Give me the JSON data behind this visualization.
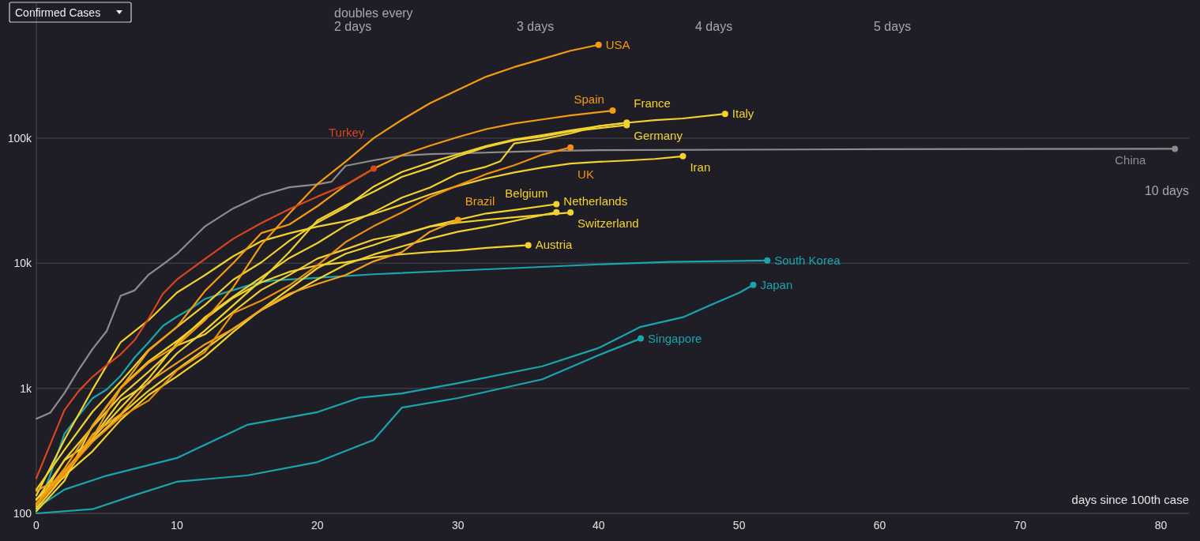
{
  "chart_data": {
    "type": "line",
    "title": "Confirmed Cases",
    "xlabel": "days since 100th case",
    "log": "y",
    "grid": "y",
    "marker": "none",
    "line_style": "solid",
    "xlim": [
      0,
      82
    ],
    "ylim": [
      100,
      1200000
    ],
    "xticks": [
      0,
      10,
      20,
      30,
      40,
      50,
      60,
      70,
      80
    ],
    "yticks": [
      {
        "value": 100,
        "label": "100"
      },
      {
        "value": 1000,
        "label": "1k"
      },
      {
        "value": 10000,
        "label": "10k"
      },
      {
        "value": 100000,
        "label": "100k"
      }
    ],
    "annotations": [
      "doubles every",
      "2 days",
      "3 days",
      "4 days",
      "5 days",
      "10 days"
    ],
    "series": [
      {
        "name": "China",
        "color": "#8c8c8c",
        "x": [
          0,
          1,
          2,
          3,
          4,
          5,
          6,
          7,
          8,
          9,
          10,
          12,
          14,
          16,
          18,
          20,
          21,
          22,
          24,
          26,
          28,
          30,
          35,
          40,
          50,
          60,
          70,
          81
        ],
        "values": [
          571,
          639,
          916,
          1399,
          2062,
          2863,
          5494,
          6070,
          8124,
          9783,
          11871,
          19700,
          27400,
          34900,
          40500,
          42700,
          44800,
          60000,
          66500,
          72400,
          74600,
          75500,
          78500,
          80100,
          80900,
          81500,
          82000,
          82200
        ]
      },
      {
        "name": "South Korea",
        "color": "#1aa5ad",
        "x": [
          0,
          1,
          2,
          3,
          4,
          5,
          6,
          7,
          8,
          9,
          10,
          11,
          12,
          13,
          14,
          15,
          16,
          17,
          19,
          24,
          29,
          34,
          40,
          45,
          52
        ],
        "values": [
          104,
          204,
          433,
          602,
          833,
          977,
          1261,
          1766,
          2337,
          3150,
          3736,
          4335,
          5186,
          5621,
          6088,
          6593,
          7041,
          7314,
          7513,
          8162,
          8652,
          9137,
          9786,
          10237,
          10512
        ]
      },
      {
        "name": "Japan",
        "color": "#1aa5ad",
        "x": [
          0,
          2,
          5,
          10,
          15,
          20,
          23,
          26,
          30,
          36,
          40,
          43,
          46,
          48,
          50,
          51
        ],
        "values": [
          110,
          155,
          200,
          277,
          510,
          645,
          840,
          910,
          1100,
          1500,
          2100,
          3100,
          3700,
          4650,
          5800,
          6700
        ]
      },
      {
        "name": "Singapore",
        "color": "#1aa5ad",
        "x": [
          0,
          4,
          7,
          10,
          15,
          20,
          24,
          26,
          30,
          36,
          40,
          43
        ],
        "values": [
          100,
          108,
          140,
          179,
          201,
          257,
          387,
          700,
          835,
          1180,
          1840,
          2500
        ]
      },
      {
        "name": "Austria",
        "color": "#f2d22e",
        "x": [
          0,
          2,
          4,
          6,
          8,
          10,
          12,
          14,
          16,
          18,
          20,
          22,
          24,
          26,
          28,
          30,
          32,
          35
        ],
        "values": [
          104,
          182,
          504,
          1016,
          1646,
          2388,
          3582,
          5282,
          7029,
          8536,
          9618,
          10180,
          11129,
          11781,
          12297,
          12639,
          13244,
          13945
        ]
      },
      {
        "name": "Netherlands",
        "color": "#f2d22e",
        "x": [
          0,
          2,
          4,
          6,
          8,
          10,
          12,
          14,
          16,
          18,
          20,
          22,
          24,
          26,
          28,
          30,
          32,
          34,
          37
        ],
        "values": [
          128,
          265,
          382,
          614,
          959,
          1413,
          2051,
          2994,
          4204,
          5560,
          7431,
          9762,
          11750,
          13614,
          15723,
          17851,
          19580,
          21762,
          25587
        ]
      },
      {
        "name": "Switzerland",
        "color": "#f2d22e",
        "x": [
          0,
          2,
          4,
          6,
          8,
          10,
          12,
          14,
          16,
          18,
          20,
          22,
          24,
          26,
          28,
          30,
          32,
          34,
          36,
          38
        ],
        "values": [
          114,
          268,
          491,
          868,
          1359,
          2200,
          2700,
          4075,
          6113,
          8060,
          10897,
          12928,
          15475,
          17070,
          19606,
          21100,
          22253,
          23280,
          24308,
          25415
        ]
      },
      {
        "name": "Belgium",
        "color": "#f2d22e",
        "x": [
          0,
          2,
          4,
          6,
          8,
          10,
          12,
          14,
          16,
          18,
          20,
          22,
          24,
          26,
          28,
          30,
          32,
          34,
          37
        ],
        "values": [
          109,
          200,
          314,
          559,
          886,
          1243,
          1795,
          2815,
          4269,
          6235,
          9134,
          11899,
          13964,
          16770,
          19691,
          22194,
          24983,
          26667,
          29647
        ]
      },
      {
        "name": "Iran",
        "color": "#f2d22e",
        "x": [
          0,
          2,
          4,
          6,
          8,
          10,
          12,
          14,
          16,
          18,
          20,
          22,
          24,
          26,
          28,
          30,
          32,
          34,
          36,
          38,
          40,
          42,
          44,
          46
        ],
        "values": [
          139,
          388,
          978,
          2336,
          3513,
          5823,
          8042,
          11364,
          14991,
          17361,
          19644,
          21638,
          24811,
          29406,
          35408,
          41495,
          47593,
          53183,
          58226,
          62589,
          64586,
          66220,
          68192,
          71686
        ]
      },
      {
        "name": "Germany",
        "color": "#f2d22e",
        "x": [
          0,
          2,
          4,
          6,
          8,
          10,
          12,
          14,
          16,
          18,
          20,
          22,
          24,
          26,
          28,
          30,
          32,
          34,
          36,
          38,
          40,
          42
        ],
        "values": [
          130,
          196,
          400,
          800,
          1100,
          1900,
          2900,
          4600,
          7300,
          12300,
          22000,
          29000,
          37300,
          49000,
          58000,
          71800,
          84800,
          96000,
          103000,
          113000,
          120000,
          127000
        ]
      },
      {
        "name": "France",
        "color": "#f2d22e",
        "x": [
          0,
          2,
          4,
          6,
          8,
          10,
          12,
          14,
          16,
          18,
          20,
          22,
          24,
          26,
          28,
          30,
          32,
          33,
          34,
          36,
          38,
          40,
          42
        ],
        "values": [
          130,
          212,
          400,
          700,
          1200,
          2300,
          3700,
          5400,
          7700,
          11000,
          14500,
          20000,
          25600,
          33400,
          40200,
          52100,
          59100,
          65200,
          90800,
          98000,
          109000,
          125000,
          133000
        ]
      },
      {
        "name": "Italy",
        "color": "#f2d22e",
        "x": [
          0,
          2,
          4,
          6,
          8,
          10,
          12,
          14,
          16,
          18,
          20,
          22,
          24,
          26,
          28,
          30,
          32,
          34,
          36,
          38,
          40,
          42,
          44,
          46,
          49
        ],
        "values": [
          155,
          322,
          650,
          1128,
          2036,
          3089,
          4636,
          7375,
          10149,
          15113,
          21157,
          27980,
          41035,
          53578,
          63927,
          74386,
          86498,
          97689,
          105792,
          115242,
          124632,
          132547,
          139422,
          143626,
          156363
        ]
      },
      {
        "name": "Brazil",
        "color": "#f4a21a",
        "x": [
          0,
          2,
          4,
          6,
          8,
          10,
          12,
          14,
          16,
          18,
          20,
          22,
          24,
          26,
          28,
          30
        ],
        "values": [
          151,
          200,
          428,
          621,
          1128,
          1593,
          2247,
          2985,
          4256,
          5717,
          6836,
          8044,
          10360,
          12240,
          17857,
          22169
        ]
      },
      {
        "name": "UK",
        "color": "#f0900e",
        "x": [
          0,
          2,
          4,
          6,
          8,
          10,
          12,
          14,
          16,
          18,
          20,
          22,
          24,
          26,
          28,
          30,
          32,
          34,
          36,
          38
        ],
        "values": [
          116,
          209,
          373,
          590,
          800,
          1391,
          1950,
          3983,
          5018,
          6650,
          9640,
          14745,
          19780,
          25474,
          33718,
          41903,
          51608,
          60733,
          73758,
          84279
        ]
      },
      {
        "name": "Spain",
        "color": "#f39c12",
        "x": [
          0,
          2,
          4,
          6,
          8,
          10,
          12,
          14,
          16,
          18,
          20,
          22,
          24,
          26,
          28,
          30,
          32,
          34,
          36,
          38,
          41
        ],
        "values": [
          120,
          228,
          500,
          1000,
          2000,
          3100,
          6000,
          10000,
          17400,
          20400,
          28600,
          42000,
          57000,
          73000,
          87000,
          102000,
          118000,
          131000,
          141000,
          152000,
          166000
        ]
      },
      {
        "name": "USA",
        "color": "#f59b0e",
        "x": [
          0,
          2,
          4,
          6,
          8,
          10,
          12,
          14,
          16,
          18,
          20,
          22,
          24,
          26,
          28,
          30,
          32,
          34,
          36,
          38,
          40
        ],
        "values": [
          118,
          217,
          402,
          1000,
          1600,
          2200,
          3500,
          6400,
          14000,
          25000,
          43000,
          65000,
          100000,
          140000,
          190000,
          243000,
          310000,
          370000,
          430000,
          500000,
          557000
        ]
      },
      {
        "name": "Turkey",
        "color": "#d9461d",
        "x": [
          0,
          1,
          2,
          3,
          4,
          5,
          6,
          7,
          8,
          9,
          10,
          12,
          14,
          16,
          18,
          20,
          22,
          24
        ],
        "values": [
          191,
          359,
          670,
          947,
          1236,
          1529,
          1872,
          2433,
          3629,
          5698,
          7402,
          10827,
          15679,
          20921,
          27069,
          34109,
          42282,
          56956
        ]
      }
    ]
  }
}
